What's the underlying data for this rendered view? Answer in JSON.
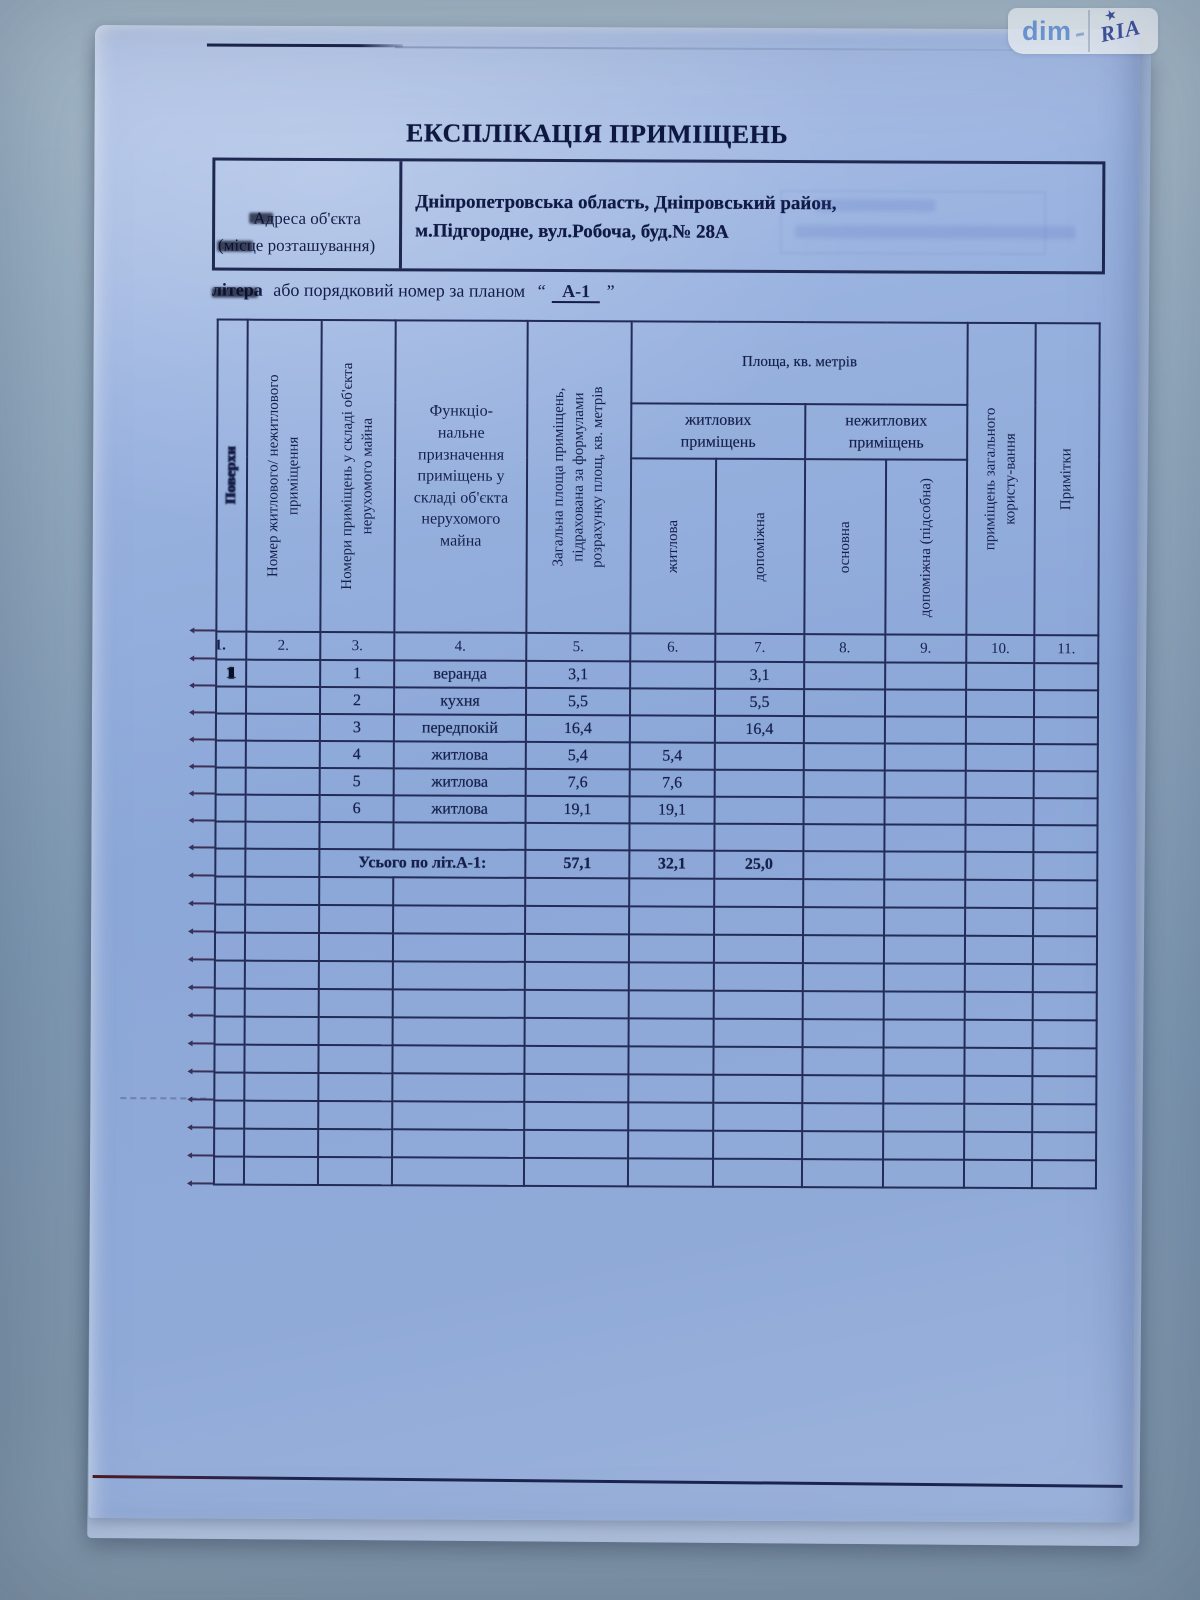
{
  "watermark": {
    "left": "dim",
    "right": "RIA"
  },
  "page": {
    "title": "ЕКСПЛІКАЦІЯ ПРИМІЩЕНЬ",
    "address": {
      "label_line1": "Адреса об'єкта",
      "label_line2": "(місце розташування)",
      "value_line1": "Дніпропетровська область, Дніпровський район,",
      "value_line2": "м.Підгородне, вул.Робоча, буд.№ 28А"
    },
    "litera": {
      "lead": "літера",
      "rest": "або порядковий номер за планом",
      "open_quote": "“",
      "value": "А-1",
      "close_quote": "”"
    }
  },
  "table": {
    "headers": {
      "col1": "Поверхи",
      "col2": "Номер житлового/ нежитлового\nприміщення",
      "col3": "Номери приміщень у складі об'єкта\nнерухомого майна",
      "col4": "Функціо-\nнальне\nпризначення\nприміщень у\nскладі об'єкта\nнерухомого\nмайна",
      "col5": "Загальна площа приміщень,\nпідрахована за формулами\nрозрахунку площ, кв. метрів",
      "area_group": "Площа, кв. метрів",
      "residential_group": "житлових\nприміщень",
      "nonresidential_group": "нежитлових\nприміщень",
      "col6": "житлова",
      "col7": "допоміжна",
      "col8": "основна",
      "col9": "допоміжна (підсобна)",
      "col10": "приміщень загального\nкористу-вання",
      "col11": "Примітки"
    },
    "column_numbers": [
      "1.",
      "2.",
      "3.",
      "4.",
      "5.",
      "6.",
      "7.",
      "8.",
      "9.",
      "10.",
      "11."
    ],
    "rows": [
      {
        "floor": "1",
        "num": "1",
        "name": "веранда",
        "total": "3,1",
        "zhytlova": "",
        "dopomizhna": "3,1"
      },
      {
        "floor": "",
        "num": "2",
        "name": "кухня",
        "total": "5,5",
        "zhytlova": "",
        "dopomizhna": "5,5"
      },
      {
        "floor": "",
        "num": "3",
        "name": "передпокій",
        "total": "16,4",
        "zhytlova": "",
        "dopomizhna": "16,4"
      },
      {
        "floor": "",
        "num": "4",
        "name": "житлова",
        "total": "5,4",
        "zhytlova": "5,4",
        "dopomizhna": ""
      },
      {
        "floor": "",
        "num": "5",
        "name": "житлова",
        "total": "7,6",
        "zhytlova": "7,6",
        "dopomizhna": ""
      },
      {
        "floor": "",
        "num": "6",
        "name": "житлова",
        "total": "19,1",
        "zhytlova": "19,1",
        "dopomizhna": ""
      }
    ],
    "summary": {
      "label": "Усього по літ.А-1:",
      "total": "57,1",
      "zhytlova": "32,1",
      "dopomizhna": "25,0"
    },
    "empty_rows_after": 11
  },
  "colors": {
    "ink": "#232b58",
    "paper": "#8ca8d8",
    "accent_red": "#4d1a1f",
    "watermark_blue": "#6f9cd9"
  }
}
